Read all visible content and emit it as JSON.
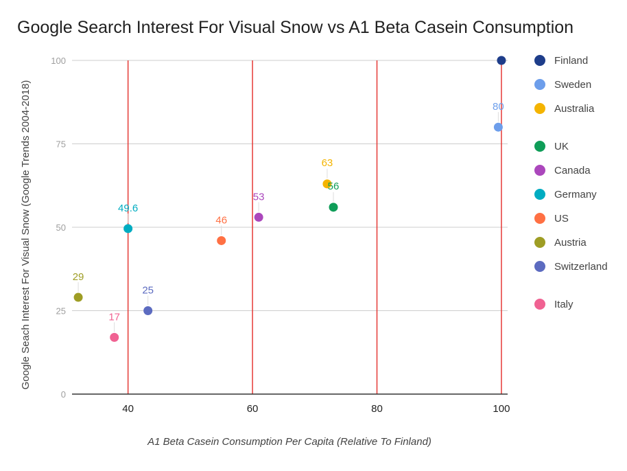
{
  "chart_data": {
    "type": "scatter",
    "title": "Google Search Interest For Visual Snow vs A1 Beta Casein Consumption",
    "xlabel": "A1 Beta Casein Consumption Per Capita (Relative To Finland)",
    "ylabel": "Google Seach Interest For Visual Snow (Google Trends 2004-2018)",
    "xlim": [
      31,
      101
    ],
    "ylim": [
      0,
      100
    ],
    "x_ticks": [
      "40",
      "60",
      "80",
      "100"
    ],
    "y_ticks": [
      "0",
      "25",
      "50",
      "75",
      "100"
    ],
    "vertical_gridlines_color": "#e53935",
    "horizontal_grid": true,
    "legend_position": "right",
    "series": [
      {
        "name": "Finland",
        "color": "#1e3d8a",
        "x": 100,
        "y": 100,
        "label": ""
      },
      {
        "name": "Sweden",
        "color": "#6d9eeb",
        "x": 99.5,
        "y": 80,
        "label": "80"
      },
      {
        "name": "Australia",
        "color": "#f4b400",
        "x": 72,
        "y": 63,
        "label": "63"
      },
      {
        "name": "UK",
        "color": "#0f9d58",
        "x": 73,
        "y": 56,
        "label": "56"
      },
      {
        "name": "Canada",
        "color": "#ab47bc",
        "x": 61,
        "y": 53,
        "label": "53"
      },
      {
        "name": "Germany",
        "color": "#00acc1",
        "x": 40,
        "y": 49.6,
        "label": "49.6"
      },
      {
        "name": "US",
        "color": "#ff7043",
        "x": 55,
        "y": 46,
        "label": "46"
      },
      {
        "name": "Austria",
        "color": "#9e9d24",
        "x": 32,
        "y": 29,
        "label": "29"
      },
      {
        "name": "Switzerland",
        "color": "#5c6bc0",
        "x": 43.2,
        "y": 25,
        "label": "25"
      },
      {
        "name": "Italy",
        "color": "#f06292",
        "x": 37.8,
        "y": 17,
        "label": "17"
      }
    ]
  }
}
